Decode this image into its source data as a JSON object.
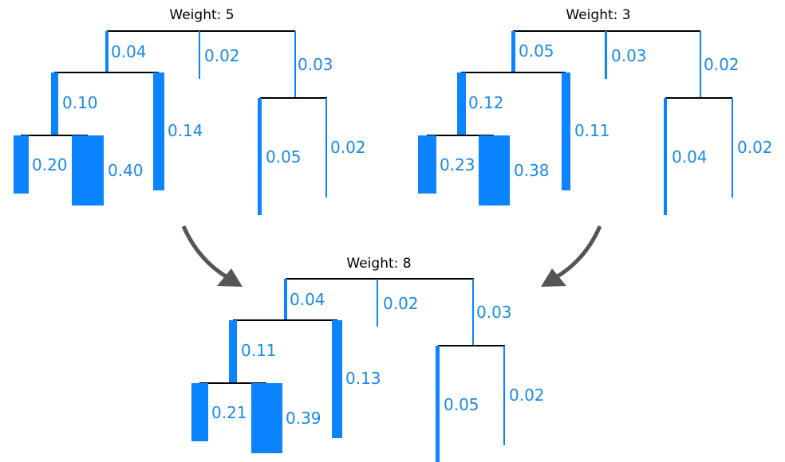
{
  "colors": {
    "branch": "#0a84ff",
    "label": "#1a8ae6",
    "connector": "#000000",
    "arrow": "#555555"
  },
  "trees": [
    {
      "title": "Weight: 5",
      "labels": {
        "a": "0.04",
        "b": "0.02",
        "c": "0.03",
        "a1": "0.10",
        "a2": "0.14",
        "a1a": "0.20",
        "a1b": "0.40",
        "c1": "0.05",
        "c2": "0.02"
      }
    },
    {
      "title": "Weight: 3",
      "labels": {
        "a": "0.05",
        "b": "0.03",
        "c": "0.02",
        "a1": "0.12",
        "a2": "0.11",
        "a1a": "0.23",
        "a1b": "0.38",
        "c1": "0.04",
        "c2": "0.02"
      }
    },
    {
      "title": "Weight: 8",
      "labels": {
        "a": "0.04",
        "b": "0.02",
        "c": "0.03",
        "a1": "0.11",
        "a2": "0.13",
        "a1a": "0.21",
        "a1b": "0.39",
        "c1": "0.05",
        "c2": "0.02"
      }
    }
  ],
  "arrows": [
    {
      "from": "tree-1",
      "to": "tree-3",
      "icon": "curved-arrow-icon"
    },
    {
      "from": "tree-2",
      "to": "tree-3",
      "icon": "curved-arrow-icon"
    }
  ]
}
